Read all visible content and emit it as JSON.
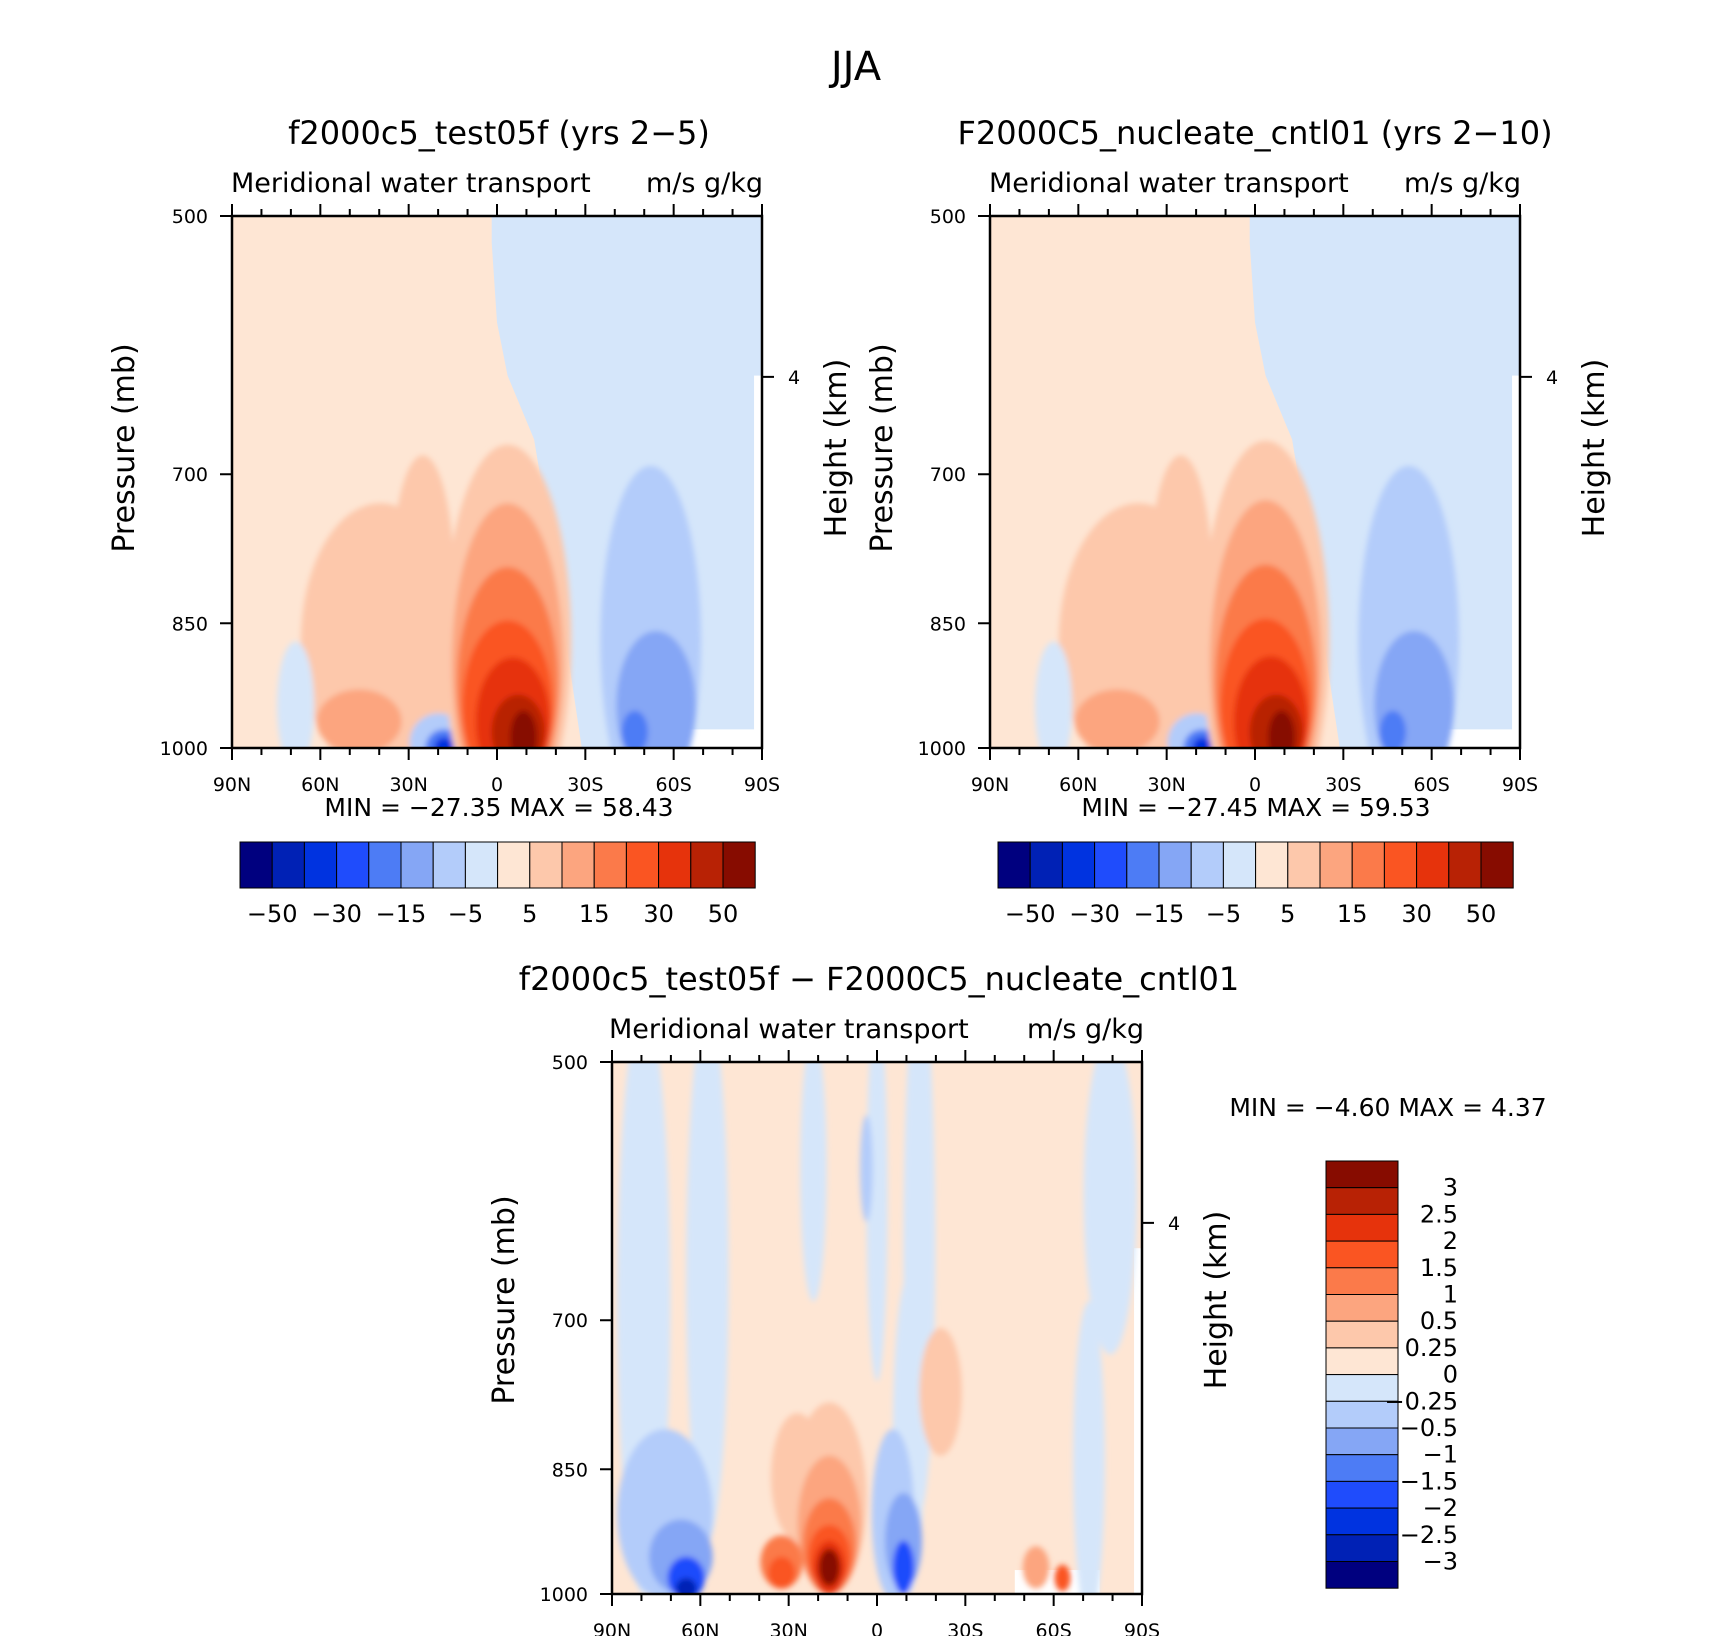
{
  "title": "JJA",
  "colors": {
    "neg": [
      "#00007f",
      "#0021b5",
      "#0033e0",
      "#1f4cfc",
      "#4d7cf5",
      "#85a6f5",
      "#b3ccfa",
      "#d5e6fa"
    ],
    "pos": [
      "#fee6d4",
      "#fdc8ab",
      "#fca57f",
      "#fb7a4a",
      "#fa5522",
      "#e6330c",
      "#b82205",
      "#870c00"
    ],
    "missing": "#ffffff"
  },
  "panels": [
    {
      "title": "f2000c5_test05f (yrs 2−5)",
      "left_string": "Meridional water transport",
      "right_string": "m/s g/kg",
      "min_max": "MIN =  −27.35   MAX =   58.43"
    },
    {
      "title": "F2000C5_nucleate_cntl01 (yrs 2−10)",
      "left_string": "Meridional water transport",
      "right_string": "m/s g/kg",
      "min_max": "MIN =  −27.45   MAX =   59.53"
    },
    {
      "title": "f2000c5_test05f − F2000C5_nucleate_cntl01",
      "left_string": "Meridional water transport",
      "right_string": "m/s g/kg",
      "min_max": "MIN =    −4.60    MAX =     4.37"
    }
  ],
  "axes": {
    "ylabel": "Pressure (mb)",
    "ylabel_right": "Height (km)",
    "y_ticks": [
      "500",
      "700",
      "850",
      "1000"
    ],
    "x_ticks": [
      "90N",
      "60N",
      "30N",
      "0",
      "30S",
      "60S",
      "90S"
    ],
    "right_ticks": [
      "4"
    ]
  },
  "colorbars": {
    "top": {
      "labels": [
        "−50",
        "−30",
        "−15",
        "−5",
        "5",
        "15",
        "30",
        "50"
      ]
    },
    "diff": {
      "labels": [
        "3",
        "2.5",
        "2",
        "1.5",
        "1",
        "0.5",
        "0.25",
        "0",
        "−0.25",
        "−0.5",
        "−1",
        "−1.5",
        "−2",
        "−2.5",
        "−3"
      ]
    }
  },
  "chart_data": [
    {
      "type": "heatmap",
      "title": "f2000c5_test05f (yrs 2−5)",
      "subtitle": "Meridional water transport",
      "units": "m/s g/kg",
      "xlabel": "",
      "ylabel": "Pressure (mb)",
      "ylabel_right": "Height (km)",
      "x_ticks": [
        "90N",
        "60N",
        "30N",
        "0",
        "30S",
        "60S",
        "90S"
      ],
      "y_ticks": [
        500,
        700,
        850,
        1000
      ],
      "y_scale": "log-pressure",
      "ylim": [
        1000,
        500
      ],
      "contour_levels": [
        -50,
        -40,
        -30,
        -20,
        -15,
        -10,
        -5,
        0,
        5,
        10,
        15,
        20,
        30,
        40,
        50
      ],
      "min": -27.35,
      "max": 58.43,
      "features": {
        "north_of_equator_above_700": "0 to 5",
        "south_of_equator_above_700": "-5 to 0",
        "max_center": {
          "lat": "10S",
          "p": 980,
          "value": 58.43
        },
        "min_center": {
          "lat": "20N",
          "p": 1000,
          "value": -27.35
        }
      }
    },
    {
      "type": "heatmap",
      "title": "F2000C5_nucleate_cntl01 (yrs 2−10)",
      "subtitle": "Meridional water transport",
      "units": "m/s g/kg",
      "xlabel": "",
      "ylabel": "Pressure (mb)",
      "ylabel_right": "Height (km)",
      "x_ticks": [
        "90N",
        "60N",
        "30N",
        "0",
        "30S",
        "60S",
        "90S"
      ],
      "y_ticks": [
        500,
        700,
        850,
        1000
      ],
      "y_scale": "log-pressure",
      "ylim": [
        1000,
        500
      ],
      "contour_levels": [
        -50,
        -40,
        -30,
        -20,
        -15,
        -10,
        -5,
        0,
        5,
        10,
        15,
        20,
        30,
        40,
        50
      ],
      "min": -27.45,
      "max": 59.53,
      "features": {
        "max_center": {
          "lat": "10S",
          "p": 980,
          "value": 59.53
        },
        "min_center": {
          "lat": "20N",
          "p": 1000,
          "value": -27.45
        }
      }
    },
    {
      "type": "heatmap",
      "title": "f2000c5_test05f − F2000C5_nucleate_cntl01",
      "subtitle": "Meridional water transport",
      "units": "m/s g/kg",
      "xlabel": "",
      "ylabel": "Pressure (mb)",
      "ylabel_right": "Height (km)",
      "x_ticks": [
        "90N",
        "60N",
        "30N",
        "0",
        "30S",
        "60S",
        "90S"
      ],
      "y_ticks": [
        500,
        700,
        850,
        1000
      ],
      "y_scale": "log-pressure",
      "ylim": [
        1000,
        500
      ],
      "contour_levels": [
        -3,
        -2.5,
        -2,
        -1.5,
        -1,
        -0.5,
        -0.25,
        0,
        0.25,
        0.5,
        1,
        1.5,
        2,
        2.5,
        3
      ],
      "min": -4.6,
      "max": 4.37,
      "features": {
        "max_center": {
          "lat": "15N",
          "p": 970,
          "value": 4.37
        },
        "min_center": {
          "lat": "65N",
          "p": 1000,
          "value": -4.6
        }
      }
    }
  ]
}
